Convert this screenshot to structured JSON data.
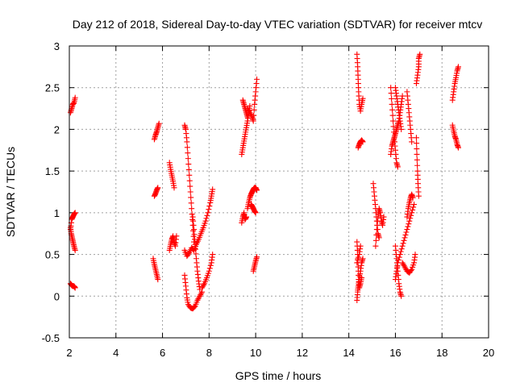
{
  "chart_data": {
    "type": "scatter",
    "title": "Day 212 of 2018, Sidereal Day-to-day VTEC variation (SDTVAR) for receiver mtcv",
    "xlabel": "GPS time / hours",
    "ylabel": "SDTVAR / TECUs",
    "xlim": [
      2,
      20
    ],
    "ylim": [
      -0.5,
      3
    ],
    "xticks": [
      2,
      4,
      6,
      8,
      10,
      12,
      14,
      16,
      18,
      20
    ],
    "yticks": [
      -0.5,
      0,
      0.5,
      1,
      1.5,
      2,
      2.5,
      3
    ],
    "xtick_labels": [
      "2",
      "4",
      "6",
      "8",
      "10",
      "12",
      "14",
      "16",
      "18",
      "20"
    ],
    "ytick_labels": [
      "-0.5",
      "0",
      "0.5",
      "1",
      "1.5",
      "2",
      "2.5",
      "3"
    ],
    "grid": true,
    "marker": "+",
    "color": "#ff0000",
    "series": [
      {
        "name": "sdtvar",
        "segments": [
          [
            [
              2.05,
              2.2
            ],
            [
              2.1,
              2.25
            ],
            [
              2.15,
              2.3
            ],
            [
              2.2,
              2.32
            ],
            [
              2.25,
              2.38
            ]
          ],
          [
            [
              2.05,
              0.8
            ],
            [
              2.1,
              0.92
            ],
            [
              2.15,
              0.95
            ],
            [
              2.2,
              0.98
            ],
            [
              2.25,
              1.0
            ]
          ],
          [
            [
              2.05,
              0.82
            ],
            [
              2.08,
              0.75
            ],
            [
              2.12,
              0.7
            ],
            [
              2.16,
              0.65
            ],
            [
              2.2,
              0.6
            ],
            [
              2.25,
              0.55
            ]
          ],
          [
            [
              2.05,
              0.15
            ],
            [
              2.1,
              0.13
            ],
            [
              2.15,
              0.12
            ],
            [
              2.2,
              0.12
            ],
            [
              2.25,
              0.1
            ]
          ],
          [
            [
              5.65,
              1.88
            ],
            [
              5.7,
              1.93
            ],
            [
              5.75,
              1.97
            ],
            [
              5.8,
              2.02
            ],
            [
              5.85,
              2.07
            ]
          ],
          [
            [
              5.65,
              1.2
            ],
            [
              5.7,
              1.23
            ],
            [
              5.75,
              1.27
            ],
            [
              5.8,
              1.3
            ]
          ],
          [
            [
              5.6,
              0.45
            ],
            [
              5.65,
              0.38
            ],
            [
              5.7,
              0.32
            ],
            [
              5.75,
              0.26
            ],
            [
              5.8,
              0.2
            ]
          ],
          [
            [
              6.3,
              1.6
            ],
            [
              6.35,
              1.52
            ],
            [
              6.4,
              1.45
            ],
            [
              6.45,
              1.38
            ],
            [
              6.5,
              1.3
            ]
          ],
          [
            [
              6.3,
              0.55
            ],
            [
              6.35,
              0.62
            ],
            [
              6.4,
              0.68
            ],
            [
              6.45,
              0.72
            ],
            [
              6.5,
              0.65
            ],
            [
              6.55,
              0.6
            ],
            [
              6.6,
              0.72
            ]
          ],
          [
            [
              6.95,
              2.05
            ],
            [
              7.0,
              2.0
            ],
            [
              7.05,
              1.85
            ],
            [
              7.1,
              1.65
            ],
            [
              7.15,
              1.45
            ],
            [
              7.2,
              1.25
            ],
            [
              7.25,
              1.05
            ],
            [
              7.3,
              0.85
            ],
            [
              7.35,
              0.65
            ]
          ],
          [
            [
              6.95,
              0.55
            ],
            [
              7.05,
              0.48
            ],
            [
              7.15,
              0.52
            ],
            [
              7.25,
              0.58
            ],
            [
              7.35,
              0.55
            ],
            [
              7.45,
              0.62
            ],
            [
              7.55,
              0.68
            ],
            [
              7.65,
              0.75
            ],
            [
              7.75,
              0.82
            ],
            [
              7.85,
              0.9
            ],
            [
              7.95,
              1.0
            ],
            [
              8.05,
              1.12
            ],
            [
              8.1,
              1.2
            ],
            [
              8.15,
              1.28
            ]
          ],
          [
            [
              6.95,
              0.25
            ],
            [
              7.0,
              0.12
            ],
            [
              7.05,
              -0.02
            ],
            [
              7.1,
              -0.1
            ],
            [
              7.2,
              -0.14
            ],
            [
              7.3,
              -0.15
            ],
            [
              7.4,
              -0.12
            ],
            [
              7.5,
              -0.05
            ],
            [
              7.6,
              0.0
            ],
            [
              7.7,
              0.05
            ]
          ],
          [
            [
              7.3,
              0.95
            ],
            [
              7.35,
              0.8
            ],
            [
              7.4,
              0.62
            ],
            [
              7.45,
              0.45
            ],
            [
              7.5,
              0.3
            ],
            [
              7.55,
              0.18
            ],
            [
              7.6,
              0.08
            ]
          ],
          [
            [
              7.7,
              0.1
            ],
            [
              7.8,
              0.15
            ],
            [
              7.9,
              0.22
            ],
            [
              8.0,
              0.3
            ],
            [
              8.1,
              0.4
            ],
            [
              8.15,
              0.5
            ]
          ],
          [
            [
              9.4,
              1.7
            ],
            [
              9.45,
              1.78
            ],
            [
              9.5,
              1.86
            ],
            [
              9.55,
              1.94
            ],
            [
              9.6,
              2.02
            ],
            [
              9.65,
              2.1
            ],
            [
              9.7,
              2.2
            ],
            [
              9.75,
              2.28
            ]
          ],
          [
            [
              9.45,
              2.35
            ],
            [
              9.5,
              2.3
            ],
            [
              9.55,
              2.25
            ],
            [
              9.6,
              2.2
            ],
            [
              9.65,
              2.15
            ]
          ],
          [
            [
              9.65,
              2.25
            ],
            [
              9.75,
              2.2
            ],
            [
              9.85,
              2.15
            ],
            [
              9.9,
              2.1
            ],
            [
              9.95,
              2.3
            ],
            [
              10.0,
              2.45
            ],
            [
              10.05,
              2.6
            ]
          ],
          [
            [
              9.4,
              0.88
            ],
            [
              9.45,
              0.95
            ],
            [
              9.5,
              1.0
            ],
            [
              9.55,
              0.92
            ],
            [
              9.6,
              0.95
            ]
          ],
          [
            [
              9.65,
              1.05
            ],
            [
              9.7,
              1.12
            ],
            [
              9.75,
              1.18
            ],
            [
              9.8,
              1.22
            ],
            [
              9.85,
              1.25
            ],
            [
              9.9,
              1.28
            ],
            [
              9.95,
              1.3
            ],
            [
              10.0,
              1.3
            ],
            [
              10.05,
              1.27
            ]
          ],
          [
            [
              9.8,
              1.1
            ],
            [
              9.85,
              1.08
            ],
            [
              9.9,
              1.05
            ],
            [
              9.95,
              1.02
            ],
            [
              10.0,
              1.0
            ]
          ],
          [
            [
              9.9,
              0.3
            ],
            [
              9.95,
              0.36
            ],
            [
              10.0,
              0.42
            ],
            [
              10.05,
              0.47
            ]
          ],
          [
            [
              14.35,
              2.9
            ],
            [
              14.38,
              2.75
            ],
            [
              14.4,
              2.6
            ],
            [
              14.42,
              2.45
            ],
            [
              14.45,
              2.3
            ],
            [
              14.5,
              2.22
            ],
            [
              14.55,
              2.3
            ],
            [
              14.6,
              2.37
            ]
          ],
          [
            [
              14.4,
              1.78
            ],
            [
              14.45,
              1.82
            ],
            [
              14.5,
              1.85
            ],
            [
              14.55,
              1.87
            ],
            [
              14.6,
              1.85
            ]
          ],
          [
            [
              14.35,
              0.65
            ],
            [
              14.38,
              0.5
            ],
            [
              14.4,
              0.35
            ],
            [
              14.42,
              0.2
            ],
            [
              14.45,
              0.1
            ],
            [
              14.5,
              0.15
            ],
            [
              14.55,
              0.22
            ]
          ],
          [
            [
              14.35,
              -0.05
            ],
            [
              14.38,
              0.05
            ],
            [
              14.4,
              0.12
            ],
            [
              14.45,
              0.2
            ],
            [
              14.5,
              0.3
            ],
            [
              14.55,
              0.4
            ],
            [
              14.6,
              0.45
            ]
          ],
          [
            [
              14.35,
              0.4
            ],
            [
              14.45,
              0.5
            ],
            [
              14.5,
              0.6
            ]
          ],
          [
            [
              15.05,
              1.35
            ],
            [
              15.1,
              1.2
            ],
            [
              15.15,
              1.05
            ],
            [
              15.2,
              0.9
            ],
            [
              15.25,
              0.75
            ],
            [
              15.3,
              0.7
            ]
          ],
          [
            [
              15.15,
              0.6
            ],
            [
              15.2,
              0.8
            ],
            [
              15.25,
              0.95
            ],
            [
              15.3,
              1.05
            ],
            [
              15.35,
              1.0
            ],
            [
              15.4,
              0.9
            ],
            [
              15.45,
              0.85
            ],
            [
              15.5,
              0.95
            ]
          ],
          [
            [
              15.8,
              2.5
            ],
            [
              15.85,
              2.3
            ],
            [
              15.9,
              2.1
            ],
            [
              15.95,
              1.9
            ],
            [
              16.0,
              1.75
            ],
            [
              16.05,
              1.6
            ],
            [
              16.1,
              1.55
            ]
          ],
          [
            [
              15.8,
              1.7
            ],
            [
              15.85,
              1.8
            ],
            [
              15.9,
              1.85
            ],
            [
              15.95,
              1.9
            ],
            [
              16.0,
              1.95
            ],
            [
              16.05,
              2.0
            ],
            [
              16.1,
              2.05
            ],
            [
              16.15,
              2.1
            ],
            [
              16.2,
              2.2
            ],
            [
              16.25,
              2.3
            ],
            [
              16.3,
              2.4
            ]
          ],
          [
            [
              16.0,
              2.5
            ],
            [
              16.05,
              2.4
            ],
            [
              16.1,
              2.3
            ],
            [
              16.15,
              2.2
            ],
            [
              16.2,
              2.1
            ],
            [
              16.25,
              2.0
            ]
          ],
          [
            [
              16.0,
              0.6
            ],
            [
              16.05,
              0.45
            ],
            [
              16.1,
              0.3
            ],
            [
              16.15,
              0.15
            ],
            [
              16.2,
              0.05
            ],
            [
              16.25,
              0.0
            ]
          ],
          [
            [
              16.0,
              0.2
            ],
            [
              16.05,
              0.3
            ],
            [
              16.1,
              0.4
            ],
            [
              16.2,
              0.5
            ],
            [
              16.3,
              0.6
            ],
            [
              16.4,
              0.7
            ],
            [
              16.5,
              0.8
            ],
            [
              16.6,
              0.9
            ],
            [
              16.7,
              1.0
            ],
            [
              16.8,
              1.1
            ]
          ],
          [
            [
              16.5,
              2.45
            ],
            [
              16.55,
              2.3
            ],
            [
              16.6,
              2.15
            ],
            [
              16.65,
              2.0
            ],
            [
              16.7,
              1.85
            ]
          ],
          [
            [
              16.5,
              0.95
            ],
            [
              16.55,
              1.05
            ],
            [
              16.6,
              1.12
            ],
            [
              16.65,
              1.18
            ],
            [
              16.7,
              1.22
            ],
            [
              16.75,
              1.18
            ]
          ],
          [
            [
              16.3,
              0.4
            ],
            [
              16.4,
              0.35
            ],
            [
              16.5,
              0.3
            ],
            [
              16.6,
              0.28
            ],
            [
              16.7,
              0.32
            ],
            [
              16.8,
              0.4
            ],
            [
              16.85,
              0.5
            ]
          ],
          [
            [
              16.9,
              1.9
            ],
            [
              16.92,
              1.7
            ],
            [
              16.95,
              1.5
            ],
            [
              16.97,
              1.35
            ],
            [
              17.0,
              1.2
            ]
          ],
          [
            [
              16.9,
              2.55
            ],
            [
              16.95,
              2.65
            ],
            [
              17.0,
              2.75
            ],
            [
              17.0,
              2.85
            ],
            [
              17.05,
              2.9
            ]
          ],
          [
            [
              18.45,
              2.35
            ],
            [
              18.5,
              2.45
            ],
            [
              18.55,
              2.55
            ],
            [
              18.6,
              2.62
            ],
            [
              18.65,
              2.7
            ],
            [
              18.7,
              2.75
            ]
          ],
          [
            [
              18.45,
              2.05
            ],
            [
              18.5,
              1.98
            ],
            [
              18.55,
              1.92
            ],
            [
              18.6,
              1.88
            ],
            [
              18.65,
              1.82
            ],
            [
              18.7,
              1.78
            ]
          ]
        ]
      }
    ]
  }
}
